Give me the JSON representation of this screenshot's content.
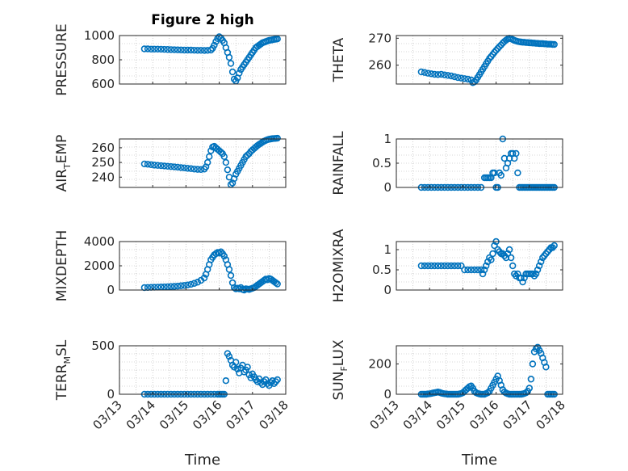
{
  "figure": {
    "title": "Figure 2 high",
    "xlabel": "Time"
  },
  "colors": {
    "marker": "#0072BD",
    "axis": "#262626",
    "grid": "#b0b0b0"
  },
  "x_ticks": [
    "03/13",
    "03/14",
    "03/15",
    "03/16",
    "03/17",
    "03/18"
  ],
  "chart_data": [
    {
      "type": "scatter",
      "ylabel": "PRESSURE",
      "ylim": [
        600,
        1000
      ],
      "yticks": [
        600,
        800,
        1000
      ],
      "xlim": [
        0,
        5
      ],
      "grid": "dotted",
      "x": [
        0.75,
        0.85,
        0.95,
        1.05,
        1.15,
        1.25,
        1.35,
        1.45,
        1.55,
        1.65,
        1.75,
        1.85,
        1.95,
        2.05,
        2.15,
        2.25,
        2.35,
        2.45,
        2.55,
        2.65,
        2.75,
        2.8,
        2.85,
        2.9,
        2.95,
        3.0,
        3.05,
        3.1,
        3.15,
        3.2,
        3.25,
        3.3,
        3.35,
        3.4,
        3.45,
        3.5,
        3.55,
        3.6,
        3.65,
        3.7,
        3.75,
        3.8,
        3.85,
        3.9,
        3.95,
        4.0,
        4.05,
        4.1,
        4.15,
        4.2,
        4.25,
        4.3,
        4.35,
        4.4,
        4.45,
        4.5,
        4.55,
        4.6,
        4.65,
        4.7,
        4.75
      ],
      "y": [
        890,
        890,
        888,
        888,
        888,
        887,
        886,
        885,
        884,
        883,
        882,
        881,
        880,
        880,
        880,
        879,
        878,
        878,
        877,
        878,
        880,
        895,
        920,
        950,
        975,
        990,
        980,
        960,
        940,
        900,
        860,
        820,
        770,
        700,
        640,
        625,
        650,
        690,
        720,
        740,
        760,
        780,
        800,
        820,
        840,
        860,
        880,
        900,
        910,
        920,
        930,
        940,
        945,
        950,
        955,
        960,
        962,
        965,
        968,
        970,
        972
      ],
      "series_name": ""
    },
    {
      "type": "scatter",
      "ylabel": "THETA",
      "ylim": [
        253,
        271
      ],
      "yticks": [
        260,
        270
      ],
      "xlim": [
        0,
        5
      ],
      "grid": "dotted",
      "x": [
        0.75,
        0.85,
        0.95,
        1.05,
        1.15,
        1.25,
        1.35,
        1.45,
        1.55,
        1.65,
        1.75,
        1.85,
        1.95,
        2.05,
        2.15,
        2.25,
        2.3,
        2.35,
        2.4,
        2.45,
        2.5,
        2.55,
        2.6,
        2.65,
        2.7,
        2.75,
        2.8,
        2.85,
        2.9,
        2.95,
        3.0,
        3.05,
        3.1,
        3.15,
        3.2,
        3.25,
        3.3,
        3.35,
        3.4,
        3.45,
        3.5,
        3.55,
        3.6,
        3.65,
        3.7,
        3.75,
        3.8,
        3.85,
        3.9,
        3.95,
        4.0,
        4.05,
        4.1,
        4.15,
        4.2,
        4.25,
        4.3,
        4.35,
        4.4,
        4.45,
        4.5,
        4.55,
        4.6,
        4.65,
        4.7,
        4.75
      ],
      "y": [
        257.5,
        257.3,
        257.0,
        256.8,
        256.6,
        256.5,
        256.6,
        256.4,
        256.2,
        256.0,
        255.7,
        255.4,
        255.2,
        255.0,
        254.8,
        254.5,
        253.5,
        253.8,
        254.5,
        255.5,
        256.5,
        257.5,
        258.5,
        259.5,
        260.5,
        261.5,
        262.5,
        263.2,
        264.0,
        264.8,
        265.5,
        266.2,
        266.9,
        267.5,
        268.2,
        268.8,
        269.3,
        269.7,
        270.0,
        269.8,
        269.5,
        269.2,
        269.0,
        268.8,
        268.7,
        268.6,
        268.5,
        268.5,
        268.4,
        268.4,
        268.3,
        268.3,
        268.2,
        268.2,
        268.1,
        268.1,
        268.0,
        268.0,
        268.0,
        267.9,
        267.9,
        267.8,
        267.8,
        267.8,
        267.7,
        267.7
      ],
      "series_name": ""
    },
    {
      "type": "scatter",
      "ylabel": "AIR_TEMP",
      "ylim": [
        233,
        266
      ],
      "yticks": [
        240,
        250,
        260
      ],
      "xlim": [
        0,
        5
      ],
      "grid": "dotted",
      "x": [
        0.75,
        0.85,
        0.95,
        1.05,
        1.15,
        1.25,
        1.35,
        1.45,
        1.55,
        1.65,
        1.75,
        1.85,
        1.95,
        2.05,
        2.15,
        2.25,
        2.35,
        2.45,
        2.55,
        2.6,
        2.65,
        2.7,
        2.75,
        2.8,
        2.85,
        2.9,
        2.95,
        3.0,
        3.05,
        3.1,
        3.15,
        3.2,
        3.25,
        3.3,
        3.35,
        3.4,
        3.45,
        3.5,
        3.55,
        3.6,
        3.65,
        3.7,
        3.75,
        3.8,
        3.85,
        3.9,
        3.95,
        4.0,
        4.05,
        4.1,
        4.15,
        4.2,
        4.25,
        4.3,
        4.35,
        4.4,
        4.45,
        4.5,
        4.55,
        4.6,
        4.65,
        4.7,
        4.75
      ],
      "y": [
        249.0,
        248.8,
        248.5,
        248.2,
        248.0,
        247.8,
        247.6,
        247.4,
        247.2,
        247.0,
        246.8,
        246.5,
        246.3,
        246.0,
        245.8,
        245.5,
        245.3,
        245.2,
        245.5,
        247,
        250,
        254,
        258,
        260.5,
        261,
        260,
        259,
        258,
        257,
        256,
        254,
        250,
        245,
        240,
        235,
        236,
        239,
        242,
        244,
        246,
        248,
        250,
        252,
        254,
        255,
        256,
        257.5,
        258.5,
        259.5,
        260.5,
        261.5,
        262.3,
        263,
        263.8,
        264.5,
        265,
        265.5,
        265.8,
        266,
        266.2,
        266.3,
        266.4,
        266.5
      ],
      "series_name": ""
    },
    {
      "type": "scatter",
      "ylabel": "RAINFALL",
      "ylim": [
        0,
        1
      ],
      "yticks": [
        0,
        0.5,
        1
      ],
      "xlim": [
        0,
        5
      ],
      "grid": "dotted",
      "x": [
        0.75,
        0.85,
        0.95,
        1.05,
        1.15,
        1.25,
        1.35,
        1.45,
        1.55,
        1.65,
        1.75,
        1.85,
        1.95,
        2.05,
        2.15,
        2.25,
        2.35,
        2.45,
        2.55,
        2.65,
        2.7,
        2.75,
        2.8,
        2.85,
        2.9,
        2.95,
        3.0,
        3.05,
        3.1,
        3.15,
        3.2,
        3.25,
        3.3,
        3.35,
        3.4,
        3.45,
        3.5,
        3.55,
        3.6,
        3.65,
        3.7,
        3.75,
        3.8,
        3.85,
        3.9,
        3.95,
        4.0,
        4.05,
        4.1,
        4.15,
        4.2,
        4.25,
        4.3,
        4.35,
        4.4,
        4.45,
        4.5,
        4.55,
        4.6,
        4.65,
        4.7,
        4.75
      ],
      "y": [
        0,
        0,
        0,
        0,
        0,
        0,
        0,
        0,
        0,
        0,
        0,
        0,
        0,
        0,
        0,
        0,
        0,
        0,
        0,
        0.2,
        0.2,
        0.2,
        0.2,
        0.2,
        0.3,
        0.3,
        0,
        0,
        0.3,
        0.25,
        1.0,
        0.6,
        0.4,
        0.5,
        0.6,
        0.7,
        0.7,
        0.6,
        0.7,
        0.3,
        0,
        0,
        0,
        0,
        0,
        0,
        0,
        0,
        0,
        0,
        0,
        0,
        0,
        0,
        0,
        0,
        0,
        0,
        0,
        0,
        0,
        0
      ],
      "series_name": ""
    },
    {
      "type": "scatter",
      "ylabel": "MIXDEPTH",
      "ylim": [
        0,
        4000
      ],
      "yticks": [
        0,
        2000,
        4000
      ],
      "xlim": [
        0,
        5
      ],
      "grid": "dotted",
      "x": [
        0.75,
        0.85,
        0.95,
        1.05,
        1.15,
        1.25,
        1.35,
        1.45,
        1.55,
        1.65,
        1.75,
        1.85,
        1.95,
        2.05,
        2.15,
        2.25,
        2.35,
        2.45,
        2.55,
        2.6,
        2.65,
        2.7,
        2.75,
        2.8,
        2.85,
        2.9,
        2.95,
        3.0,
        3.05,
        3.1,
        3.15,
        3.2,
        3.25,
        3.3,
        3.35,
        3.4,
        3.45,
        3.5,
        3.55,
        3.6,
        3.65,
        3.7,
        3.75,
        3.8,
        3.85,
        3.9,
        3.95,
        4.0,
        4.05,
        4.1,
        4.15,
        4.2,
        4.25,
        4.3,
        4.35,
        4.4,
        4.45,
        4.5,
        4.55,
        4.6,
        4.65,
        4.7,
        4.75
      ],
      "y": [
        200,
        210,
        220,
        230,
        240,
        250,
        260,
        270,
        290,
        300,
        320,
        350,
        380,
        420,
        470,
        550,
        650,
        800,
        1000,
        1300,
        1700,
        2100,
        2500,
        2700,
        2900,
        3000,
        3100,
        3050,
        3150,
        3000,
        2800,
        2500,
        2100,
        1700,
        1200,
        600,
        200,
        100,
        150,
        100,
        200,
        50,
        0,
        100,
        80,
        50,
        100,
        150,
        200,
        300,
        400,
        500,
        600,
        700,
        800,
        900,
        850,
        950,
        900,
        800,
        700,
        600,
        500
      ],
      "series_name": ""
    },
    {
      "type": "scatter",
      "ylabel": "H2OMIXRA",
      "ylim": [
        0,
        1.2
      ],
      "yticks": [
        0,
        0.5,
        1
      ],
      "xlim": [
        0,
        5
      ],
      "grid": "dotted",
      "x": [
        0.75,
        0.85,
        0.95,
        1.05,
        1.15,
        1.25,
        1.35,
        1.45,
        1.55,
        1.65,
        1.75,
        1.85,
        1.95,
        2.05,
        2.15,
        2.25,
        2.35,
        2.45,
        2.55,
        2.6,
        2.65,
        2.7,
        2.75,
        2.8,
        2.85,
        2.9,
        2.95,
        3.0,
        3.05,
        3.1,
        3.15,
        3.2,
        3.25,
        3.3,
        3.35,
        3.4,
        3.45,
        3.5,
        3.55,
        3.6,
        3.65,
        3.7,
        3.75,
        3.8,
        3.85,
        3.9,
        3.95,
        4.0,
        4.05,
        4.1,
        4.15,
        4.2,
        4.25,
        4.3,
        4.35,
        4.4,
        4.45,
        4.5,
        4.55,
        4.6,
        4.65,
        4.7,
        4.75
      ],
      "y": [
        0.6,
        0.6,
        0.6,
        0.6,
        0.6,
        0.6,
        0.6,
        0.6,
        0.6,
        0.6,
        0.6,
        0.6,
        0.6,
        0.5,
        0.5,
        0.5,
        0.5,
        0.5,
        0.5,
        0.4,
        0.5,
        0.6,
        0.7,
        0.8,
        0.75,
        0.9,
        1.1,
        1.2,
        1.0,
        0.95,
        0.9,
        0.9,
        0.85,
        0.8,
        0.9,
        1.0,
        0.8,
        0.6,
        0.4,
        0.35,
        0.4,
        0.3,
        0.3,
        0.2,
        0.3,
        0.4,
        0.4,
        0.4,
        0.4,
        0.4,
        0.35,
        0.4,
        0.5,
        0.6,
        0.7,
        0.8,
        0.85,
        0.9,
        0.95,
        1.0,
        1.05,
        1.05,
        1.1
      ],
      "series_name": ""
    },
    {
      "type": "scatter",
      "ylabel": "TERR_MSL",
      "ylim": [
        0,
        500
      ],
      "yticks": [
        0,
        500
      ],
      "xlim": [
        0,
        5
      ],
      "grid": "dotted",
      "x": [
        0.75,
        0.85,
        0.95,
        1.05,
        1.15,
        1.25,
        1.35,
        1.45,
        1.55,
        1.65,
        1.75,
        1.85,
        1.95,
        2.05,
        2.15,
        2.25,
        2.35,
        2.45,
        2.55,
        2.65,
        2.75,
        2.85,
        2.95,
        3.0,
        3.05,
        3.1,
        3.15,
        3.2,
        3.25,
        3.3,
        3.35,
        3.4,
        3.45,
        3.5,
        3.55,
        3.6,
        3.65,
        3.7,
        3.75,
        3.8,
        3.85,
        3.9,
        3.95,
        4.0,
        4.05,
        4.1,
        4.15,
        4.2,
        4.25,
        4.3,
        4.35,
        4.4,
        4.45,
        4.5,
        4.55,
        4.6,
        4.65,
        4.7,
        4.75
      ],
      "y": [
        0,
        0,
        0,
        0,
        0,
        0,
        0,
        0,
        0,
        0,
        0,
        0,
        0,
        0,
        0,
        0,
        0,
        0,
        0,
        0,
        0,
        0,
        0,
        0,
        0,
        0,
        0,
        140,
        420,
        390,
        350,
        300,
        280,
        330,
        260,
        220,
        270,
        300,
        230,
        250,
        280,
        200,
        170,
        210,
        180,
        150,
        130,
        160,
        120,
        100,
        130,
        150,
        110,
        90,
        120,
        140,
        110,
        130,
        150
      ],
      "series_name": ""
    },
    {
      "type": "scatter",
      "ylabel": "SUN_FLUX",
      "ylim": [
        0,
        320
      ],
      "yticks": [
        0,
        200
      ],
      "xlim": [
        0,
        5
      ],
      "grid": "dotted",
      "x": [
        0.75,
        0.8,
        0.85,
        0.9,
        0.95,
        1.0,
        1.05,
        1.1,
        1.15,
        1.2,
        1.25,
        1.3,
        1.35,
        1.4,
        1.45,
        1.5,
        1.55,
        1.6,
        1.65,
        1.7,
        1.75,
        1.8,
        1.85,
        1.9,
        1.95,
        2.0,
        2.05,
        2.1,
        2.15,
        2.2,
        2.25,
        2.3,
        2.35,
        2.4,
        2.45,
        2.5,
        2.55,
        2.6,
        2.65,
        2.7,
        2.75,
        2.8,
        2.85,
        2.9,
        2.95,
        3.0,
        3.05,
        3.1,
        3.15,
        3.2,
        3.25,
        3.3,
        3.35,
        3.4,
        3.45,
        3.5,
        3.55,
        3.6,
        3.65,
        3.7,
        3.75,
        3.8,
        3.85,
        3.9,
        3.95,
        4.0,
        4.05,
        4.1,
        4.15,
        4.2,
        4.25,
        4.3,
        4.35,
        4.4,
        4.45,
        4.5,
        4.55,
        4.6,
        4.65,
        4.7,
        4.75
      ],
      "y": [
        0,
        0,
        0,
        0,
        2,
        3,
        5,
        8,
        10,
        12,
        15,
        12,
        8,
        5,
        3,
        2,
        0,
        0,
        0,
        0,
        0,
        0,
        0,
        2,
        5,
        10,
        20,
        30,
        40,
        50,
        55,
        40,
        20,
        10,
        5,
        2,
        0,
        0,
        0,
        5,
        10,
        20,
        40,
        60,
        80,
        100,
        120,
        90,
        60,
        30,
        15,
        8,
        3,
        0,
        0,
        0,
        0,
        0,
        0,
        0,
        0,
        2,
        5,
        10,
        20,
        40,
        100,
        200,
        280,
        300,
        310,
        290,
        270,
        240,
        210,
        180,
        0,
        0,
        0,
        0,
        0
      ],
      "series_name": ""
    }
  ]
}
